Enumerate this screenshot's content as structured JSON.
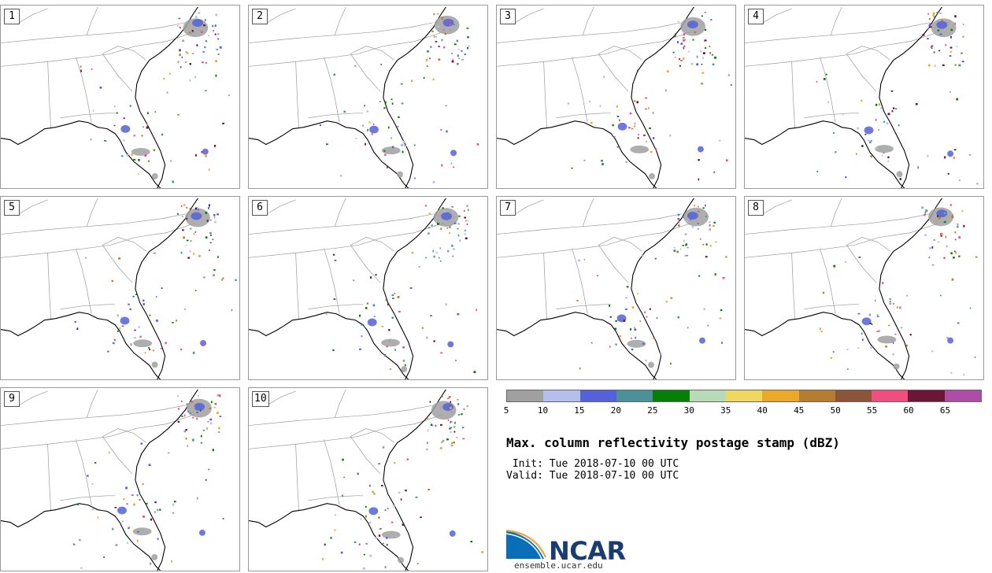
{
  "panels": [
    {
      "label": "1"
    },
    {
      "label": "2"
    },
    {
      "label": "3"
    },
    {
      "label": "4"
    },
    {
      "label": "5"
    },
    {
      "label": "6"
    },
    {
      "label": "7"
    },
    {
      "label": "8"
    },
    {
      "label": "9"
    },
    {
      "label": "10"
    }
  ],
  "colorbar": {
    "colors": [
      "#a0a0a0",
      "#b4bfec",
      "#5561d8",
      "#4d9097",
      "#057f06",
      "#b9dab7",
      "#efd861",
      "#eba92b",
      "#b47d32",
      "#8a5538",
      "#ef4f7e",
      "#6b1636",
      "#ac4ea3"
    ],
    "ticks": [
      "5",
      "10",
      "15",
      "20",
      "25",
      "30",
      "35",
      "40",
      "45",
      "50",
      "55",
      "60",
      "65"
    ]
  },
  "title": "Max. column reflectivity postage stamp (dBZ)",
  "init_line": " Init: Tue 2018-07-10 00 UTC",
  "valid_line": "Valid: Tue 2018-07-10 00 UTC",
  "logo_text": "NCAR",
  "website": "ensemble.ucar.edu",
  "accent_colors": {
    "logo_blue": "#0a6fb8",
    "logo_navy": "#1b3d6e"
  }
}
